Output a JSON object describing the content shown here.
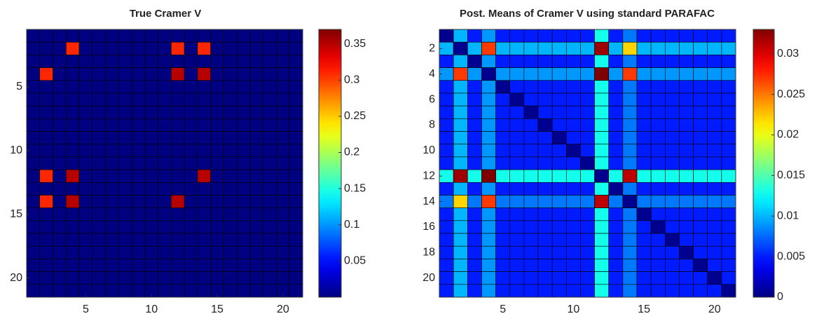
{
  "chart_data": [
    {
      "type": "heatmap",
      "title": "True Cramer V",
      "colormap": "jet",
      "x": [
        1,
        2,
        3,
        4,
        5,
        6,
        7,
        8,
        9,
        10,
        11,
        12,
        13,
        14,
        15,
        16,
        17,
        18,
        19,
        20,
        21
      ],
      "y": [
        1,
        2,
        3,
        4,
        5,
        6,
        7,
        8,
        9,
        10,
        11,
        12,
        13,
        14,
        15,
        16,
        17,
        18,
        19,
        20,
        21
      ],
      "xlim": [
        0.5,
        21.5
      ],
      "ylim": [
        0.5,
        21.5
      ],
      "xticks": [
        5,
        10,
        15,
        20
      ],
      "yticks": [
        5,
        10,
        15,
        20
      ],
      "clim": [
        0,
        0.37
      ],
      "cticks": [
        0.05,
        0.1,
        0.15,
        0.2,
        0.25,
        0.3,
        0.35
      ],
      "z": [
        [
          0,
          0,
          0,
          0,
          0,
          0,
          0,
          0,
          0,
          0,
          0,
          0,
          0,
          0,
          0,
          0,
          0,
          0,
          0,
          0,
          0
        ],
        [
          0,
          0,
          0,
          0.31,
          0,
          0,
          0,
          0,
          0,
          0,
          0,
          0.31,
          0,
          0.31,
          0,
          0,
          0,
          0,
          0,
          0,
          0
        ],
        [
          0,
          0,
          0,
          0,
          0,
          0,
          0,
          0,
          0,
          0,
          0,
          0,
          0,
          0,
          0,
          0,
          0,
          0,
          0,
          0,
          0
        ],
        [
          0,
          0.31,
          0,
          0,
          0,
          0,
          0,
          0,
          0,
          0,
          0,
          0.35,
          0,
          0.35,
          0,
          0,
          0,
          0,
          0,
          0,
          0
        ],
        [
          0,
          0,
          0,
          0,
          0,
          0,
          0,
          0,
          0,
          0,
          0,
          0,
          0,
          0,
          0,
          0,
          0,
          0,
          0,
          0,
          0
        ],
        [
          0,
          0,
          0,
          0,
          0,
          0,
          0,
          0,
          0,
          0,
          0,
          0,
          0,
          0,
          0,
          0,
          0,
          0,
          0,
          0,
          0
        ],
        [
          0,
          0,
          0,
          0,
          0,
          0,
          0,
          0,
          0,
          0,
          0,
          0,
          0,
          0,
          0,
          0,
          0,
          0,
          0,
          0,
          0
        ],
        [
          0,
          0,
          0,
          0,
          0,
          0,
          0,
          0,
          0,
          0,
          0,
          0,
          0,
          0,
          0,
          0,
          0,
          0,
          0,
          0,
          0
        ],
        [
          0,
          0,
          0,
          0,
          0,
          0,
          0,
          0,
          0,
          0,
          0,
          0,
          0,
          0,
          0,
          0,
          0,
          0,
          0,
          0,
          0
        ],
        [
          0,
          0,
          0,
          0,
          0,
          0,
          0,
          0,
          0,
          0,
          0,
          0,
          0,
          0,
          0,
          0,
          0,
          0,
          0,
          0,
          0
        ],
        [
          0,
          0,
          0,
          0,
          0,
          0,
          0,
          0,
          0,
          0,
          0,
          0,
          0,
          0,
          0,
          0,
          0,
          0,
          0,
          0,
          0
        ],
        [
          0,
          0.31,
          0,
          0.35,
          0,
          0,
          0,
          0,
          0,
          0,
          0,
          0,
          0,
          0.35,
          0,
          0,
          0,
          0,
          0,
          0,
          0
        ],
        [
          0,
          0,
          0,
          0,
          0,
          0,
          0,
          0,
          0,
          0,
          0,
          0,
          0,
          0,
          0,
          0,
          0,
          0,
          0,
          0,
          0
        ],
        [
          0,
          0.31,
          0,
          0.35,
          0,
          0,
          0,
          0,
          0,
          0,
          0,
          0.35,
          0,
          0,
          0,
          0,
          0,
          0,
          0,
          0,
          0
        ],
        [
          0,
          0,
          0,
          0,
          0,
          0,
          0,
          0,
          0,
          0,
          0,
          0,
          0,
          0,
          0,
          0,
          0,
          0,
          0,
          0,
          0
        ],
        [
          0,
          0,
          0,
          0,
          0,
          0,
          0,
          0,
          0,
          0,
          0,
          0,
          0,
          0,
          0,
          0,
          0,
          0,
          0,
          0,
          0
        ],
        [
          0,
          0,
          0,
          0,
          0,
          0,
          0,
          0,
          0,
          0,
          0,
          0,
          0,
          0,
          0,
          0,
          0,
          0,
          0,
          0,
          0
        ],
        [
          0,
          0,
          0,
          0,
          0,
          0,
          0,
          0,
          0,
          0,
          0,
          0,
          0,
          0,
          0,
          0,
          0,
          0,
          0,
          0,
          0
        ],
        [
          0,
          0,
          0,
          0,
          0,
          0,
          0,
          0,
          0,
          0,
          0,
          0,
          0,
          0,
          0,
          0,
          0,
          0,
          0,
          0,
          0
        ],
        [
          0,
          0,
          0,
          0,
          0,
          0,
          0,
          0,
          0,
          0,
          0,
          0,
          0,
          0,
          0,
          0,
          0,
          0,
          0,
          0,
          0
        ],
        [
          0,
          0,
          0,
          0,
          0,
          0,
          0,
          0,
          0,
          0,
          0,
          0,
          0,
          0,
          0,
          0,
          0,
          0,
          0,
          0,
          0
        ]
      ]
    },
    {
      "type": "heatmap",
      "title": "Post. Means of Cramer V using standard PARAFAC",
      "colormap": "jet",
      "x": [
        1,
        2,
        3,
        4,
        5,
        6,
        7,
        8,
        9,
        10,
        11,
        12,
        13,
        14,
        15,
        16,
        17,
        18,
        19,
        20,
        21
      ],
      "y": [
        1,
        2,
        3,
        4,
        5,
        6,
        7,
        8,
        9,
        10,
        11,
        12,
        13,
        14,
        15,
        16,
        17,
        18,
        19,
        20,
        21
      ],
      "xlim": [
        0.5,
        21.5
      ],
      "ylim": [
        0.5,
        21.5
      ],
      "xticks": [
        5,
        10,
        15,
        20
      ],
      "yticks": [
        2,
        4,
        6,
        8,
        10,
        12,
        14,
        16,
        18,
        20
      ],
      "clim": [
        0,
        0.033
      ],
      "cticks": [
        0,
        0.005,
        0.01,
        0.015,
        0.02,
        0.025,
        0.03
      ],
      "z": [
        [
          0.0005,
          0.01,
          0.005,
          0.009,
          0.005,
          0.005,
          0.005,
          0.005,
          0.005,
          0.005,
          0.005,
          0.013,
          0.005,
          0.008,
          0.005,
          0.005,
          0.005,
          0.005,
          0.005,
          0.005,
          0.005
        ],
        [
          0.01,
          0.0005,
          0.01,
          0.027,
          0.01,
          0.01,
          0.01,
          0.01,
          0.01,
          0.01,
          0.01,
          0.032,
          0.01,
          0.022,
          0.01,
          0.01,
          0.01,
          0.01,
          0.01,
          0.01,
          0.01
        ],
        [
          0.005,
          0.01,
          0.0005,
          0.009,
          0.005,
          0.005,
          0.005,
          0.005,
          0.005,
          0.005,
          0.005,
          0.013,
          0.005,
          0.008,
          0.005,
          0.005,
          0.005,
          0.005,
          0.005,
          0.005,
          0.005
        ],
        [
          0.009,
          0.027,
          0.009,
          0.0005,
          0.009,
          0.009,
          0.009,
          0.009,
          0.009,
          0.009,
          0.009,
          0.033,
          0.009,
          0.027,
          0.009,
          0.009,
          0.009,
          0.009,
          0.009,
          0.009,
          0.009
        ],
        [
          0.005,
          0.01,
          0.005,
          0.009,
          0.0005,
          0.005,
          0.005,
          0.005,
          0.005,
          0.005,
          0.005,
          0.013,
          0.005,
          0.008,
          0.005,
          0.005,
          0.005,
          0.005,
          0.005,
          0.005,
          0.005
        ],
        [
          0.005,
          0.01,
          0.005,
          0.009,
          0.005,
          0.0005,
          0.005,
          0.005,
          0.005,
          0.005,
          0.005,
          0.013,
          0.005,
          0.008,
          0.005,
          0.005,
          0.005,
          0.005,
          0.005,
          0.005,
          0.005
        ],
        [
          0.005,
          0.01,
          0.005,
          0.009,
          0.005,
          0.005,
          0.0005,
          0.005,
          0.005,
          0.005,
          0.005,
          0.013,
          0.005,
          0.008,
          0.005,
          0.005,
          0.005,
          0.005,
          0.005,
          0.005,
          0.005
        ],
        [
          0.005,
          0.01,
          0.005,
          0.009,
          0.005,
          0.005,
          0.005,
          0.0005,
          0.005,
          0.005,
          0.005,
          0.013,
          0.005,
          0.008,
          0.005,
          0.005,
          0.005,
          0.005,
          0.005,
          0.005,
          0.005
        ],
        [
          0.005,
          0.01,
          0.005,
          0.009,
          0.005,
          0.005,
          0.005,
          0.005,
          0.0005,
          0.005,
          0.005,
          0.013,
          0.005,
          0.008,
          0.005,
          0.005,
          0.005,
          0.005,
          0.005,
          0.005,
          0.005
        ],
        [
          0.005,
          0.01,
          0.005,
          0.009,
          0.005,
          0.005,
          0.005,
          0.005,
          0.005,
          0.0005,
          0.005,
          0.013,
          0.005,
          0.008,
          0.005,
          0.005,
          0.005,
          0.005,
          0.005,
          0.005,
          0.005
        ],
        [
          0.005,
          0.01,
          0.005,
          0.009,
          0.005,
          0.005,
          0.005,
          0.005,
          0.005,
          0.005,
          0.0005,
          0.013,
          0.005,
          0.008,
          0.005,
          0.005,
          0.005,
          0.005,
          0.005,
          0.005,
          0.005
        ],
        [
          0.013,
          0.032,
          0.013,
          0.033,
          0.013,
          0.013,
          0.013,
          0.013,
          0.013,
          0.013,
          0.013,
          0.0005,
          0.013,
          0.031,
          0.013,
          0.013,
          0.013,
          0.013,
          0.013,
          0.013,
          0.013
        ],
        [
          0.005,
          0.01,
          0.005,
          0.009,
          0.005,
          0.005,
          0.005,
          0.005,
          0.005,
          0.005,
          0.005,
          0.013,
          0.0005,
          0.008,
          0.005,
          0.005,
          0.005,
          0.005,
          0.005,
          0.005,
          0.005
        ],
        [
          0.008,
          0.022,
          0.008,
          0.027,
          0.008,
          0.008,
          0.008,
          0.008,
          0.008,
          0.008,
          0.008,
          0.031,
          0.008,
          0.0005,
          0.008,
          0.008,
          0.008,
          0.008,
          0.008,
          0.008,
          0.008
        ],
        [
          0.005,
          0.01,
          0.005,
          0.009,
          0.005,
          0.005,
          0.005,
          0.005,
          0.005,
          0.005,
          0.005,
          0.013,
          0.005,
          0.008,
          0.0005,
          0.005,
          0.005,
          0.005,
          0.005,
          0.005,
          0.005
        ],
        [
          0.005,
          0.01,
          0.005,
          0.009,
          0.005,
          0.005,
          0.005,
          0.005,
          0.005,
          0.005,
          0.005,
          0.013,
          0.005,
          0.008,
          0.005,
          0.0005,
          0.005,
          0.005,
          0.005,
          0.005,
          0.005
        ],
        [
          0.005,
          0.01,
          0.005,
          0.009,
          0.005,
          0.005,
          0.005,
          0.005,
          0.005,
          0.005,
          0.005,
          0.013,
          0.005,
          0.008,
          0.005,
          0.005,
          0.0005,
          0.005,
          0.005,
          0.005,
          0.005
        ],
        [
          0.005,
          0.01,
          0.005,
          0.009,
          0.005,
          0.005,
          0.005,
          0.005,
          0.005,
          0.005,
          0.005,
          0.013,
          0.005,
          0.008,
          0.005,
          0.005,
          0.005,
          0.0005,
          0.005,
          0.005,
          0.005
        ],
        [
          0.005,
          0.01,
          0.005,
          0.009,
          0.005,
          0.005,
          0.005,
          0.005,
          0.005,
          0.005,
          0.005,
          0.013,
          0.005,
          0.008,
          0.005,
          0.005,
          0.005,
          0.005,
          0.0005,
          0.005,
          0.005
        ],
        [
          0.005,
          0.01,
          0.005,
          0.009,
          0.005,
          0.005,
          0.005,
          0.005,
          0.005,
          0.005,
          0.005,
          0.013,
          0.005,
          0.008,
          0.005,
          0.005,
          0.005,
          0.005,
          0.005,
          0.0005,
          0.005
        ],
        [
          0.005,
          0.01,
          0.005,
          0.009,
          0.005,
          0.005,
          0.005,
          0.005,
          0.005,
          0.005,
          0.005,
          0.013,
          0.005,
          0.008,
          0.005,
          0.005,
          0.005,
          0.005,
          0.005,
          0.005,
          0.0005
        ]
      ]
    }
  ]
}
